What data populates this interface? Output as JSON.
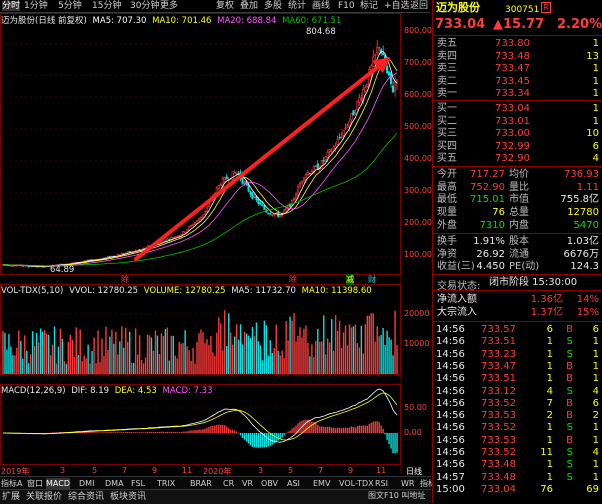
{
  "toolbar": {
    "items": [
      "分时",
      "1分钟",
      "5分钟",
      "15分钟",
      "30分钟",
      "更多"
    ],
    "right_items": [
      "复权",
      "叠加",
      "多股",
      "统计",
      "画线",
      "F10",
      "标记",
      "+自选",
      "返回"
    ]
  },
  "chart_header": {
    "name": "迈为股份(日线 前复权)",
    "ma5": "MA5: 707.30",
    "ma10": "MA10: 701.46",
    "ma20": "MA20: 688.84",
    "ma60": "MA60: 671.51",
    "high_label": "804.68",
    "low_label": "64.89",
    "marks": [
      "除",
      "除",
      "减",
      "财"
    ]
  },
  "price_axis": [
    "800.00",
    "700.00",
    "600.00",
    "500.00",
    "400.00",
    "300.00",
    "200.00",
    "100.00"
  ],
  "vol_header": {
    "name": "VOL-TDX(5,10)",
    "vvol": "VVOL: 12780.25",
    "volume": "VOLUME: 12780.25",
    "ma5": "MA5: 11732.70",
    "ma10": "MA10: 11398.60"
  },
  "vol_axis": [
    "20000",
    "10000"
  ],
  "macd_header": {
    "name": "MACD(12,26,9)",
    "dif": "DIF: 8.19",
    "dea": "DEA: 4.53",
    "macd": "MACD: 7.33"
  },
  "macd_axis": [
    "50.00",
    "0.00"
  ],
  "time_axis": [
    "2019年",
    "3",
    "5",
    "7",
    "9",
    "11",
    "2020年",
    "3",
    "5",
    "7",
    "9",
    "11",
    "日线"
  ],
  "indicator_tabs": [
    "指标A",
    "窗口",
    "MACD",
    "DMI",
    "DMA",
    "FSL",
    "TRIX",
    "BRAR",
    "CR",
    "VR",
    "OBV",
    "ASI",
    "EMV",
    "VOL-TDX",
    "RSI",
    "WR",
    "指标B",
    "模板"
  ],
  "bottom_bar": [
    "扩展",
    "关联报价",
    "综合资讯",
    "板块资讯"
  ],
  "bottom_right": [
    "图文F10",
    "叫地址",
    "F1",
    "F2",
    "F3",
    "F4",
    "F5",
    "F6",
    "F7",
    "F8",
    "F9",
    "F10"
  ],
  "stock": {
    "name": "迈为股份",
    "code": "300751",
    "tag": "R",
    "price": "733.04",
    "change": "▲15.77",
    "pct": "2.20%"
  },
  "sell_orders": [
    {
      "label": "卖五",
      "price": "733.80",
      "vol": "1"
    },
    {
      "label": "卖四",
      "price": "733.48",
      "vol": "13"
    },
    {
      "label": "卖三",
      "price": "733.47",
      "vol": "1"
    },
    {
      "label": "卖二",
      "price": "733.45",
      "vol": "1"
    },
    {
      "label": "卖一",
      "price": "733.34",
      "vol": "1"
    }
  ],
  "buy_orders": [
    {
      "label": "买一",
      "price": "733.04",
      "vol": "1"
    },
    {
      "label": "买二",
      "price": "733.01",
      "vol": "1"
    },
    {
      "label": "买三",
      "price": "733.00",
      "vol": "10"
    },
    {
      "label": "买四",
      "price": "732.99",
      "vol": "6"
    },
    {
      "label": "买五",
      "price": "732.90",
      "vol": "4"
    }
  ],
  "stats": [
    {
      "l1": "今开",
      "v1": "717.27",
      "l2": "均价",
      "v2": "736.93"
    },
    {
      "l1": "最高",
      "v1": "752.90",
      "l2": "量比",
      "v2": "1.11"
    },
    {
      "l1": "最低",
      "v1": "715.01",
      "l2": "市值",
      "v2": "755.8亿"
    },
    {
      "l1": "现量",
      "v1": "76",
      "l2": "总量",
      "v2": "12780"
    },
    {
      "l1": "外盘",
      "v1": "7310",
      "l2": "内盘",
      "v2": "5470"
    }
  ],
  "stats2": [
    {
      "l1": "换手",
      "v1": "1.91%",
      "l2": "股本",
      "v2": "1.03亿"
    },
    {
      "l1": "净资",
      "v1": "26.92",
      "l2": "流通",
      "v2": "6676万"
    },
    {
      "l1": "收益(三)",
      "v1": "4.450",
      "l2": "PE(动)",
      "v2": "124.3"
    }
  ],
  "trade_state": {
    "label": "交易状态:",
    "value": "闭市阶段 15:30:00"
  },
  "flows": [
    {
      "label": "净流入额",
      "value": "1.36亿",
      "pct": "14%"
    },
    {
      "label": "大宗流入",
      "value": "1.37亿",
      "pct": "15%"
    }
  ],
  "ticks": [
    {
      "time": "14:56",
      "price": "733.57",
      "vol": "6",
      "bs": "B",
      "n": "6"
    },
    {
      "time": "14:56",
      "price": "733.51",
      "vol": "1",
      "bs": "S",
      "n": "1"
    },
    {
      "time": "14:56",
      "price": "733.23",
      "vol": "1",
      "bs": "S",
      "n": "1"
    },
    {
      "time": "14:56",
      "price": "733.47",
      "vol": "1",
      "bs": "B",
      "n": "1"
    },
    {
      "time": "14:56",
      "price": "733.51",
      "vol": "1",
      "bs": "B",
      "n": "1"
    },
    {
      "time": "14:56",
      "price": "733.12",
      "vol": "4",
      "bs": "S",
      "n": "4"
    },
    {
      "time": "14:56",
      "price": "733.52",
      "vol": "7",
      "bs": "B",
      "n": "6"
    },
    {
      "time": "14:56",
      "price": "733.53",
      "vol": "2",
      "bs": "B",
      "n": "2"
    },
    {
      "time": "14:56",
      "price": "733.52",
      "vol": "1",
      "bs": "S",
      "n": "1"
    },
    {
      "time": "14:56",
      "price": "733.53",
      "vol": "1",
      "bs": "B",
      "n": "1"
    },
    {
      "time": "14:56",
      "price": "733.52",
      "vol": "11",
      "bs": "S",
      "n": "4"
    },
    {
      "time": "14:56",
      "price": "733.48",
      "vol": "1",
      "bs": "S",
      "n": "1"
    },
    {
      "time": "14:57",
      "price": "733.48",
      "vol": "1",
      "bs": "S",
      "n": "1"
    },
    {
      "time": "15:00",
      "price": "733.04",
      "vol": "76",
      "bs": "",
      "n": "69"
    }
  ],
  "colors": {
    "up": "#ff3b3b",
    "down": "#00e5e5",
    "ma5": "#ffffff",
    "ma10": "#ffff00",
    "ma20": "#ff55ff",
    "ma60": "#00c000",
    "trend": "#ff2020"
  }
}
